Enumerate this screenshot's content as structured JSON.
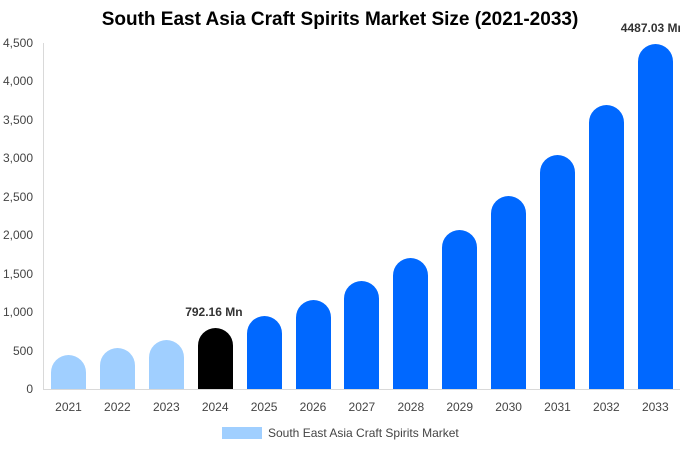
{
  "chart_data": {
    "type": "bar",
    "title": "South East Asia Craft Spirits Market Size (2021-2033)",
    "xlabel": "",
    "ylabel": "",
    "ylim": [
      0,
      4500
    ],
    "yticks": [
      "0",
      "500",
      "1,000",
      "1,500",
      "2,000",
      "2,500",
      "3,000",
      "3,500",
      "4,000",
      "4,500"
    ],
    "categories": [
      "2021",
      "2022",
      "2023",
      "2024",
      "2025",
      "2026",
      "2027",
      "2028",
      "2029",
      "2030",
      "2031",
      "2032",
      "2033"
    ],
    "series": [
      {
        "name": "South East Asia Craft Spirits Market",
        "values": [
          442,
          533,
          637,
          792.16,
          950,
          1157,
          1404,
          1703,
          2067,
          2510,
          3043,
          3693,
          4487.03
        ]
      }
    ],
    "annotations": [
      {
        "category": "2024",
        "text": "792.16 Mn"
      },
      {
        "category": "2033",
        "text": "4487.03 Mn"
      }
    ],
    "colors": {
      "historical": "#a0cfff",
      "current": "#000000",
      "forecast": "#0068ff"
    },
    "legend": {
      "position": "bottom",
      "label": "South East Asia Craft Spirits Market",
      "color": "#a0cfff"
    },
    "grid": false
  }
}
